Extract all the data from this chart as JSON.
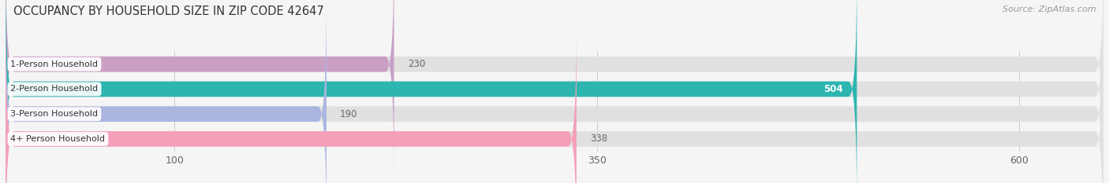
{
  "title": "OCCUPANCY BY HOUSEHOLD SIZE IN ZIP CODE 42647",
  "source": "Source: ZipAtlas.com",
  "categories": [
    "1-Person Household",
    "2-Person Household",
    "3-Person Household",
    "4+ Person Household"
  ],
  "values": [
    230,
    504,
    190,
    338
  ],
  "bar_colors": [
    "#c9a0c4",
    "#2db5b0",
    "#abb5e0",
    "#f4a0b8"
  ],
  "xlim": [
    0,
    650
  ],
  "xticks": [
    100,
    350,
    600
  ],
  "label_inside": [
    false,
    true,
    false,
    false
  ],
  "bg_color": "#f5f5f5",
  "bar_bg_color": "#e0e0e0",
  "title_fontsize": 10.5,
  "source_fontsize": 8,
  "tick_fontsize": 9,
  "bar_label_fontsize": 8.5,
  "category_fontsize": 8,
  "bar_height": 0.62
}
